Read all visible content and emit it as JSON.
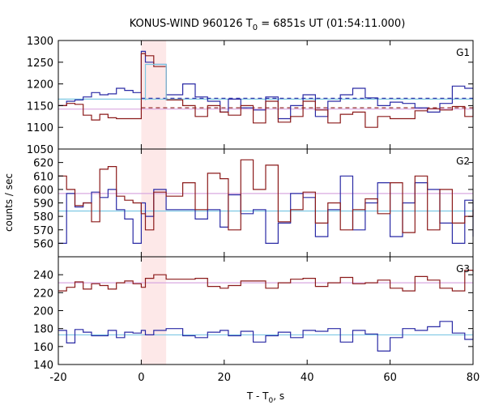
{
  "chart_data": {
    "type": "line",
    "title_parts": {
      "main": "KONUS-WIND 960126 T",
      "sub": "0",
      "rest": " = 6851s UT (01:54:11.000)"
    },
    "xlabel_parts": {
      "main": "T - T",
      "sub": "0",
      "rest": ", s"
    },
    "ylabel": "counts / sec",
    "xlim": [
      -20,
      80
    ],
    "xticks": [
      -20,
      0,
      20,
      40,
      60,
      80
    ],
    "highlight_interval": [
      0,
      6
    ],
    "step_edges": [
      -20,
      -18,
      -16,
      -14,
      -12,
      -10,
      -8,
      -6,
      -4,
      -2,
      0,
      1,
      3,
      6,
      10,
      13,
      16,
      19,
      21,
      24,
      27,
      30,
      33,
      36,
      39,
      42,
      45,
      48,
      51,
      54,
      57,
      60,
      63,
      66,
      69,
      72,
      75,
      78,
      80
    ],
    "colors": {
      "red": "#8b1a1a",
      "blue": "#2a2aa5",
      "cyan": "#7ec8e3",
      "pink": "#d9a8e0",
      "highlight": "#fde8e8"
    },
    "panels": [
      {
        "label": "G1",
        "ylim": [
          1050,
          1300
        ],
        "yticks": [
          1050,
          1100,
          1150,
          1200,
          1250,
          1300
        ],
        "show_ytick_labels": [
          1050,
          1100,
          1150,
          1200,
          1250,
          1300
        ],
        "red": [
          1150,
          1155,
          1153,
          1128,
          1117,
          1130,
          1122,
          1120,
          1120,
          1120,
          1270,
          1265,
          1240,
          1163,
          1150,
          1125,
          1150,
          1135,
          1128,
          1150,
          1110,
          1160,
          1112,
          1125,
          1160,
          1140,
          1110,
          1130,
          1135,
          1100,
          1125,
          1120,
          1120,
          1138,
          1143,
          1140,
          1148,
          1125,
          1148
        ],
        "blue": [
          1150,
          1160,
          1163,
          1170,
          1180,
          1175,
          1177,
          1190,
          1185,
          1180,
          1275,
          1250,
          1245,
          1175,
          1200,
          1170,
          1160,
          1135,
          1165,
          1145,
          1140,
          1170,
          1120,
          1150,
          1175,
          1125,
          1160,
          1175,
          1190,
          1168,
          1150,
          1158,
          1155,
          1145,
          1135,
          1155,
          1195,
          1190,
          1190
        ],
        "cyan_bins": [
          {
            "x0": 1,
            "x1": 6,
            "y": 1245
          }
        ],
        "levels": [
          {
            "y": 1165,
            "color": "cyan",
            "dash": "none"
          },
          {
            "y": 1142,
            "color": "pink",
            "dash": "none"
          },
          {
            "y": 1167,
            "color": "blue",
            "dash": "5,4",
            "x0": 0
          },
          {
            "y": 1145,
            "color": "red",
            "dash": "5,4",
            "x0": 0
          }
        ]
      },
      {
        "label": "G2",
        "ylim": [
          550,
          630
        ],
        "yticks": [
          550,
          560,
          570,
          580,
          590,
          600,
          610,
          620
        ],
        "show_ytick_labels": [
          560,
          570,
          580,
          590,
          600,
          610,
          620
        ],
        "red": [
          610,
          600,
          588,
          590,
          576,
          615,
          617,
          595,
          592,
          590,
          582,
          570,
          598,
          595,
          605,
          585,
          612,
          608,
          570,
          622,
          600,
          618,
          576,
          585,
          598,
          575,
          590,
          570,
          585,
          593,
          582,
          605,
          568,
          610,
          570,
          600,
          575,
          580,
          585
        ],
        "blue": [
          560,
          597,
          587,
          590,
          598,
          594,
          600,
          585,
          578,
          560,
          590,
          580,
          600,
          585,
          585,
          578,
          585,
          572,
          596,
          582,
          585,
          560,
          575,
          597,
          594,
          565,
          585,
          610,
          570,
          590,
          605,
          565,
          590,
          605,
          600,
          575,
          560,
          592,
          565
        ],
        "cyan_bins": [],
        "levels": [
          {
            "y": 584,
            "color": "cyan",
            "dash": "none"
          },
          {
            "y": 597,
            "color": "pink",
            "dash": "none"
          }
        ]
      },
      {
        "label": "G3",
        "ylim": [
          140,
          260
        ],
        "yticks": [
          140,
          160,
          180,
          200,
          220,
          240,
          260
        ],
        "show_ytick_labels": [
          140,
          160,
          180,
          200,
          220,
          240
        ],
        "red": [
          222,
          226,
          232,
          224,
          230,
          228,
          224,
          231,
          233,
          230,
          226,
          236,
          240,
          235,
          235,
          236,
          227,
          225,
          228,
          233,
          233,
          225,
          231,
          235,
          236,
          227,
          231,
          237,
          230,
          231,
          234,
          225,
          222,
          238,
          234,
          225,
          222,
          245,
          243
        ],
        "blue": [
          178,
          164,
          179,
          176,
          172,
          172,
          178,
          170,
          176,
          175,
          178,
          173,
          178,
          180,
          172,
          170,
          176,
          178,
          172,
          177,
          165,
          172,
          176,
          170,
          178,
          177,
          180,
          165,
          178,
          174,
          155,
          170,
          180,
          178,
          182,
          188,
          175,
          168,
          178
        ],
        "cyan_bins": [],
        "levels": [
          {
            "y": 173,
            "color": "cyan",
            "dash": "none"
          },
          {
            "y": 231,
            "color": "pink",
            "dash": "none"
          }
        ]
      }
    ]
  }
}
